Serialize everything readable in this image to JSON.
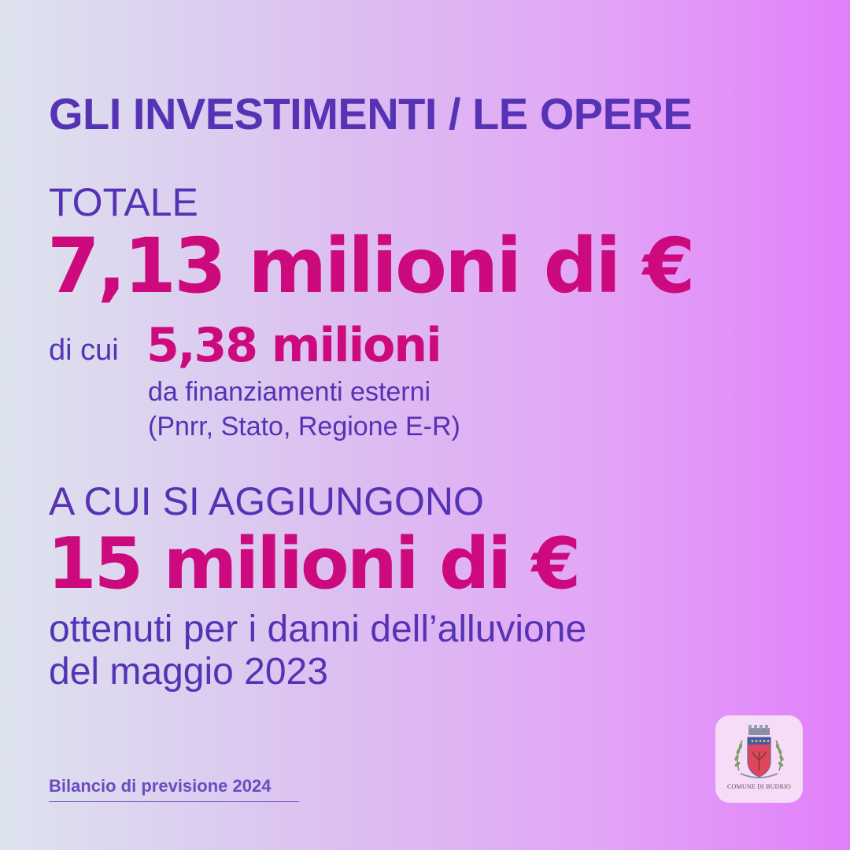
{
  "heading": "GLI INVESTIMENTI / LE OPERE",
  "total": {
    "label": "TOTALE",
    "value": "7,13 milioni di €"
  },
  "external": {
    "prefix": "di cui",
    "value": "5,38 milioni",
    "line1": "da finanziamenti esterni",
    "line2": "(Pnrr, Stato, Regione E-R)"
  },
  "additional": {
    "label": "A CUI SI AGGIUNGONO",
    "value": "15 milioni di €",
    "line1": "ottenuti per i danni dell’alluvione",
    "line2": "del maggio 2023"
  },
  "footer": "Bilancio di previsione 2024",
  "logo": {
    "caption": "COMUNE DI BUDRIO",
    "icon": "coat-of-arms-icon"
  },
  "colors": {
    "accent_purple": "#5533b4",
    "accent_pink": "#cc0a7d"
  }
}
